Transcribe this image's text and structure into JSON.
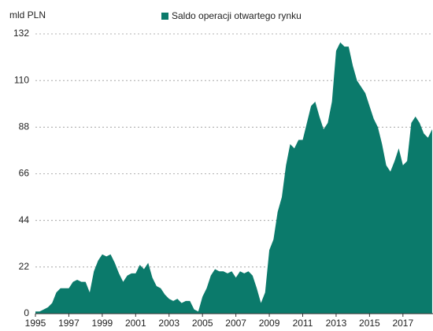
{
  "chart_data": {
    "type": "area",
    "y_label": "mld PLN",
    "x": [
      1995,
      1995.25,
      1995.5,
      1995.75,
      1996,
      1996.25,
      1996.5,
      1996.75,
      1997,
      1997.25,
      1997.5,
      1997.75,
      1998,
      1998.25,
      1998.5,
      1998.75,
      1999,
      1999.25,
      1999.5,
      1999.75,
      2000,
      2000.25,
      2000.5,
      2000.75,
      2001,
      2001.25,
      2001.5,
      2001.75,
      2002,
      2002.25,
      2002.5,
      2002.75,
      2003,
      2003.25,
      2003.5,
      2003.75,
      2004,
      2004.25,
      2004.5,
      2004.75,
      2005,
      2005.25,
      2005.5,
      2005.75,
      2006,
      2006.25,
      2006.5,
      2006.75,
      2007,
      2007.25,
      2007.5,
      2007.75,
      2008,
      2008.25,
      2008.5,
      2008.75,
      2009,
      2009.25,
      2009.5,
      2009.75,
      2010,
      2010.25,
      2010.5,
      2010.75,
      2011,
      2011.25,
      2011.5,
      2011.75,
      2012,
      2012.25,
      2012.5,
      2012.75,
      2013,
      2013.25,
      2013.5,
      2013.75,
      2014,
      2014.25,
      2014.5,
      2014.75,
      2015,
      2015.25,
      2015.5,
      2015.75,
      2016,
      2016.25,
      2016.5,
      2016.75,
      2017,
      2017.25,
      2017.5,
      2017.75,
      2018,
      2018.25,
      2018.5,
      2018.75
    ],
    "series": [
      {
        "name": "Saldo operacji otwartego rynku",
        "color": "#0b7a6b",
        "values": [
          1,
          1,
          2,
          3,
          5,
          10,
          12,
          12,
          12,
          15,
          16,
          15,
          15,
          10,
          20,
          25,
          28,
          27,
          28,
          24,
          19,
          15,
          18,
          19,
          19,
          23,
          21,
          24,
          17,
          13,
          12,
          9,
          7,
          6,
          7,
          5,
          6,
          6,
          2,
          1,
          8,
          12,
          18,
          21,
          20,
          20,
          19,
          20,
          17,
          20,
          19,
          20,
          18,
          12,
          5,
          10,
          30,
          35,
          48,
          55,
          70,
          80,
          78,
          82,
          82,
          90,
          98,
          100,
          93,
          87,
          90,
          100,
          124,
          128,
          126,
          126,
          117,
          110,
          107,
          104,
          98,
          92,
          88,
          80,
          70,
          67,
          72,
          78,
          70,
          72,
          90,
          93,
          90,
          85,
          83,
          87
        ]
      }
    ],
    "xlim": [
      1995,
      2018.8
    ],
    "xticks": [
      1995,
      1997,
      1999,
      2001,
      2003,
      2005,
      2007,
      2009,
      2011,
      2013,
      2015,
      2017
    ],
    "ylim": [
      0,
      132
    ],
    "yticks": [
      0,
      22,
      44,
      66,
      88,
      110,
      132
    ],
    "grid": true
  }
}
